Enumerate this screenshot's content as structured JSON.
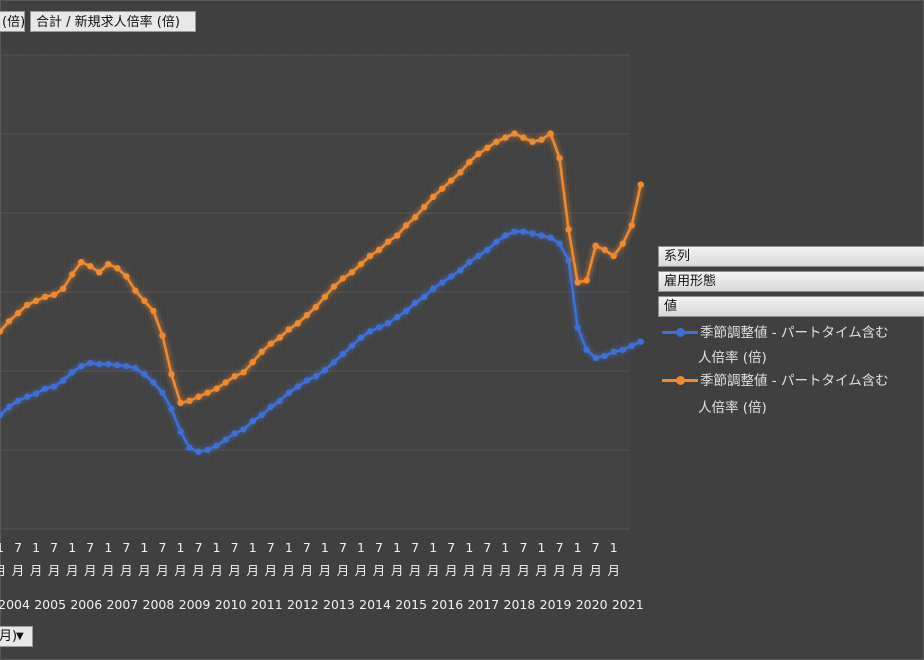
{
  "header": {
    "left_label": "(倍)",
    "right_label": "合計 / 新規求人倍率 (倍)"
  },
  "legend": {
    "title_series": "系列",
    "title_employment": "雇用形態",
    "title_value": "値",
    "items": [
      {
        "line1": "季節調整値 - パートタイム含む",
        "line2": "人倍率 (倍)",
        "color": "#3e6fd8"
      },
      {
        "line1": "季節調整値 - パートタイム含む",
        "line2": "人倍率 (倍)",
        "color": "#f08a30"
      }
    ]
  },
  "filter": {
    "label": "月)",
    "arrow": "▼"
  },
  "chart_data": {
    "type": "line",
    "x_tick_years": [
      "2004",
      "2005",
      "2006",
      "2007",
      "2008",
      "2009",
      "2010",
      "2011",
      "2012",
      "2013",
      "2014",
      "2015",
      "2016",
      "2017",
      "2018",
      "2019",
      "2020",
      "2021"
    ],
    "x_tick_month_labels": [
      "1",
      "7"
    ],
    "x_tick_unit": "月",
    "x": [
      "2004-01",
      "2004-04",
      "2004-07",
      "2004-10",
      "2005-01",
      "2005-04",
      "2005-07",
      "2005-10",
      "2006-01",
      "2006-04",
      "2006-07",
      "2006-10",
      "2007-01",
      "2007-04",
      "2007-07",
      "2007-10",
      "2008-01",
      "2008-04",
      "2008-07",
      "2008-10",
      "2009-01",
      "2009-04",
      "2009-07",
      "2009-10",
      "2010-01",
      "2010-04",
      "2010-07",
      "2010-10",
      "2011-01",
      "2011-04",
      "2011-07",
      "2011-10",
      "2012-01",
      "2012-04",
      "2012-07",
      "2012-10",
      "2013-01",
      "2013-04",
      "2013-07",
      "2013-10",
      "2014-01",
      "2014-04",
      "2014-07",
      "2014-10",
      "2015-01",
      "2015-04",
      "2015-07",
      "2015-10",
      "2016-01",
      "2016-04",
      "2016-07",
      "2016-10",
      "2017-01",
      "2017-04",
      "2017-07",
      "2017-10",
      "2018-01",
      "2018-04",
      "2018-07",
      "2018-10",
      "2019-01",
      "2019-04",
      "2019-07",
      "2019-10",
      "2020-01",
      "2020-04",
      "2020-07",
      "2020-10",
      "2021-01",
      "2021-04",
      "2021-07",
      "2021-10"
    ],
    "series": [
      {
        "color": "#3e6fd8",
        "values": [
          0.44,
          0.52,
          0.58,
          0.62,
          0.65,
          0.7,
          0.72,
          0.78,
          0.86,
          0.92,
          0.95,
          0.94,
          0.94,
          0.93,
          0.92,
          0.9,
          0.84,
          0.76,
          0.66,
          0.5,
          0.28,
          0.12,
          0.08,
          0.1,
          0.14,
          0.2,
          0.26,
          0.3,
          0.38,
          0.44,
          0.52,
          0.58,
          0.66,
          0.72,
          0.78,
          0.82,
          0.88,
          0.96,
          1.04,
          1.12,
          1.2,
          1.26,
          1.3,
          1.34,
          1.4,
          1.46,
          1.54,
          1.6,
          1.68,
          1.74,
          1.8,
          1.86,
          1.94,
          2.0,
          2.06,
          2.14,
          2.2,
          2.24,
          2.24,
          2.22,
          2.2,
          2.18,
          2.12,
          1.96,
          1.3,
          1.08,
          1.0,
          1.02,
          1.06,
          1.08,
          1.12,
          1.16
        ]
      },
      {
        "color": "#f08a30",
        "values": [
          1.26,
          1.36,
          1.44,
          1.52,
          1.56,
          1.6,
          1.62,
          1.68,
          1.82,
          1.94,
          1.9,
          1.84,
          1.92,
          1.88,
          1.8,
          1.66,
          1.56,
          1.46,
          1.22,
          0.84,
          0.56,
          0.58,
          0.62,
          0.66,
          0.7,
          0.76,
          0.82,
          0.86,
          0.96,
          1.06,
          1.14,
          1.2,
          1.28,
          1.34,
          1.42,
          1.5,
          1.6,
          1.7,
          1.78,
          1.84,
          1.92,
          2.0,
          2.06,
          2.14,
          2.2,
          2.3,
          2.38,
          2.48,
          2.58,
          2.66,
          2.74,
          2.82,
          2.92,
          3.0,
          3.06,
          3.12,
          3.16,
          3.2,
          3.16,
          3.12,
          3.14,
          3.2,
          2.96,
          2.26,
          1.74,
          1.76,
          2.1,
          2.06,
          2.0,
          2.12,
          2.3,
          2.7
        ]
      }
    ]
  }
}
